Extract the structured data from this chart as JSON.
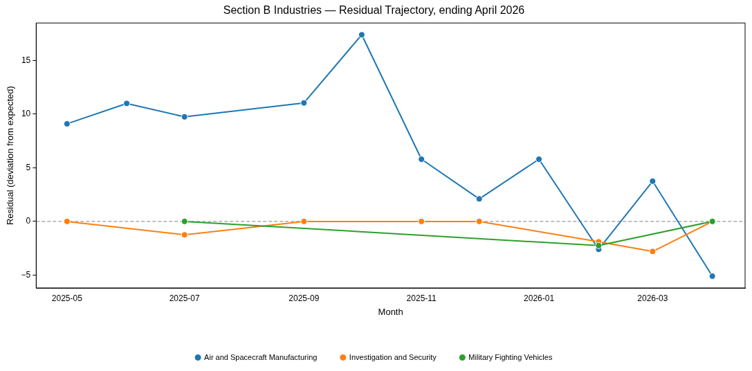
{
  "chart_data": {
    "type": "line",
    "title": "Section B Industries — Residual Trajectory, ending April 2026",
    "xlabel": "Month",
    "ylabel": "Residual (deviation from expected)",
    "xlim": [
      "2025-04-15",
      "2026-04-18"
    ],
    "xticks": [
      "2025-05",
      "2025-07",
      "2025-09",
      "2025-11",
      "2026-01",
      "2026-03"
    ],
    "ylim": [
      -6.2,
      18.5
    ],
    "yticks": [
      -5,
      0,
      5,
      10,
      15
    ],
    "grid": false,
    "legend": "bottom",
    "marker": "circle",
    "line_style": "solid",
    "ref_lines": [
      {
        "axis": "y",
        "value": 0,
        "color": "#808080",
        "line_style": "dashed"
      }
    ],
    "series": [
      {
        "name": "Air and Spacecraft Manufacturing",
        "color": "#1f77b4",
        "x": [
          "2025-05",
          "2025-06",
          "2025-07",
          "2025-09",
          "2025-10",
          "2025-11",
          "2025-12",
          "2026-01",
          "2026-02",
          "2026-03",
          "2026-04"
        ],
        "values": [
          9.1,
          11.0,
          9.75,
          11.05,
          17.4,
          5.8,
          2.1,
          5.8,
          -2.6,
          3.75,
          -5.1
        ]
      },
      {
        "name": "Investigation and Security",
        "color": "#ff7f0e",
        "x": [
          "2025-05",
          "2025-07",
          "2025-09",
          "2025-11",
          "2025-12",
          "2026-02",
          "2026-03",
          "2026-04"
        ],
        "values": [
          0,
          -1.25,
          0,
          0,
          0,
          -1.9,
          -2.8,
          0
        ]
      },
      {
        "name": "Military Fighting Vehicles",
        "color": "#2ca02c",
        "x": [
          "2025-07",
          "2026-02",
          "2026-04"
        ],
        "values": [
          0,
          -2.25,
          0
        ]
      }
    ]
  }
}
